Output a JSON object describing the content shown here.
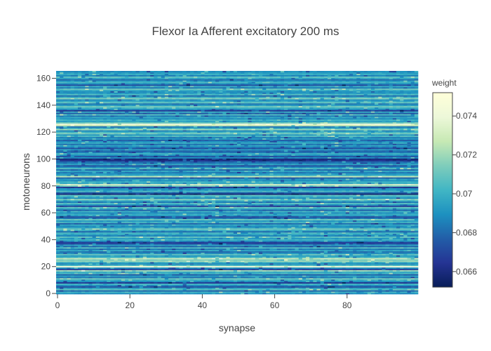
{
  "chart_data": {
    "type": "heatmap",
    "title": "Flexor Ia Afferent excitatory 200 ms",
    "xlabel": "synapse",
    "ylabel": "motoneurons",
    "xlim": [
      0,
      99
    ],
    "ylim": [
      0,
      165
    ],
    "x_ticks": [
      0,
      20,
      40,
      60,
      80
    ],
    "y_ticks": [
      0,
      20,
      40,
      60,
      80,
      100,
      120,
      140,
      160
    ],
    "num_synapses": 100,
    "num_motoneurons": 166,
    "colorbar": {
      "title": "weight",
      "range": [
        0.0652,
        0.0752
      ],
      "ticks": [
        0.066,
        0.068,
        0.07,
        0.072,
        0.074
      ],
      "colorscale": "YlGnBu",
      "scale_colors": [
        "#081d58",
        "#253494",
        "#225ea8",
        "#1d91c0",
        "#41b6c4",
        "#7fcdbb",
        "#c7e9b4",
        "#edf8d9",
        "#ffffd9"
      ]
    },
    "motoneuron_weights": [
      0.0689,
      0.0701,
      0.0679,
      0.0708,
      0.0694,
      0.0672,
      0.0689,
      0.0702,
      0.0665,
      0.0688,
      0.0699,
      0.0711,
      0.0683,
      0.0694,
      0.0678,
      0.0703,
      0.0697,
      0.0721,
      0.0667,
      0.0689,
      0.0741,
      0.0706,
      0.0688,
      0.0697,
      0.0719,
      0.0712,
      0.0729,
      0.0701,
      0.0693,
      0.0709,
      0.0688,
      0.0681,
      0.0697,
      0.0684,
      0.0706,
      0.0679,
      0.0694,
      0.0672,
      0.0666,
      0.0689,
      0.0701,
      0.0692,
      0.0708,
      0.0686,
      0.0696,
      0.0703,
      0.0681,
      0.0699,
      0.0712,
      0.0694,
      0.0688,
      0.0697,
      0.0679,
      0.0704,
      0.0691,
      0.0711,
      0.0683,
      0.0672,
      0.0694,
      0.0699,
      0.0688,
      0.0702,
      0.0679,
      0.0697,
      0.0708,
      0.0668,
      0.0692,
      0.0706,
      0.0684,
      0.0699,
      0.0716,
      0.0688,
      0.0699,
      0.0707,
      0.0658,
      0.0679,
      0.0704,
      0.0692,
      0.0688,
      0.0664,
      0.0712,
      0.0733,
      0.0697,
      0.0701,
      0.0689,
      0.0694,
      0.0677,
      0.0726,
      0.0699,
      0.0691,
      0.0684,
      0.0697,
      0.0679,
      0.0706,
      0.0688,
      0.0672,
      0.0696,
      0.0684,
      0.0679,
      0.0662,
      0.0659,
      0.0688,
      0.0674,
      0.0691,
      0.0701,
      0.0683,
      0.0678,
      0.0694,
      0.0672,
      0.0687,
      0.0696,
      0.0681,
      0.0699,
      0.0689,
      0.0677,
      0.0693,
      0.0684,
      0.0706,
      0.0692,
      0.0714,
      0.0701,
      0.0688,
      0.0719,
      0.0697,
      0.0683,
      0.0729,
      0.0738,
      0.0711,
      0.0694,
      0.0702,
      0.0689,
      0.0697,
      0.0684,
      0.0706,
      0.0676,
      0.0699,
      0.0665,
      0.0689,
      0.0701,
      0.0712,
      0.0694,
      0.0683,
      0.0709,
      0.0697,
      0.0688,
      0.0716,
      0.0699,
      0.0681,
      0.0704,
      0.0692,
      0.0689,
      0.0697,
      0.0711,
      0.0684,
      0.0699,
      0.0672,
      0.0688,
      0.0703,
      0.0693,
      0.0681,
      0.0697,
      0.0708,
      0.0686,
      0.0699,
      0.0694,
      0.0689
    ]
  }
}
